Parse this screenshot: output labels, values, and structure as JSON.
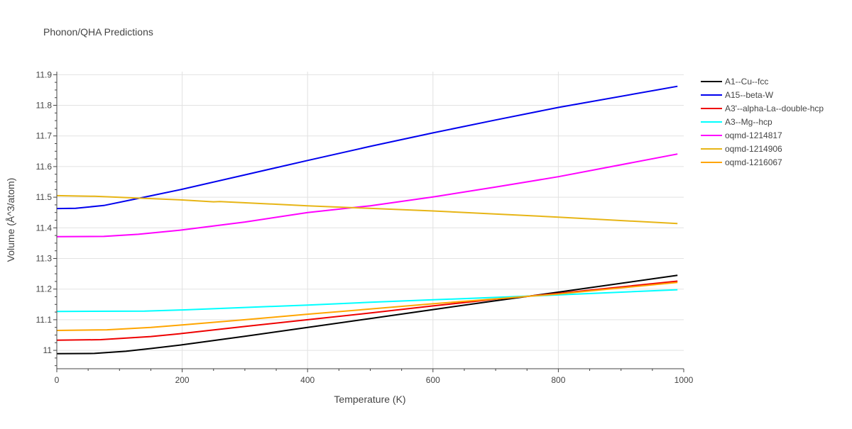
{
  "chart_data": {
    "type": "line",
    "title": "Phonon/QHA Predictions",
    "xlabel": "Temperature (K)",
    "ylabel": "Volume (Å^3/atom)",
    "xlim": [
      0,
      1000
    ],
    "ylim": [
      10.94,
      11.91
    ],
    "x_ticks": [
      0,
      200,
      400,
      600,
      800,
      1000
    ],
    "y_ticks": [
      11,
      11.1,
      11.2,
      11.3,
      11.4,
      11.5,
      11.6,
      11.7,
      11.8,
      11.9
    ],
    "grid": true,
    "legend_position": "right",
    "series": [
      {
        "name": "A1--Cu--fcc",
        "color": "#000000",
        "x": [
          0,
          60,
          110,
          150,
          200,
          300,
          400,
          500,
          600,
          700,
          800,
          990
        ],
        "y": [
          10.989,
          10.99,
          10.997,
          11.006,
          11.018,
          11.046,
          11.075,
          11.104,
          11.133,
          11.162,
          11.19,
          11.245
        ]
      },
      {
        "name": "A15--beta-W",
        "color": "#0000ee",
        "x": [
          0,
          30,
          75,
          120,
          200,
          300,
          400,
          500,
          600,
          700,
          800,
          990
        ],
        "y": [
          11.463,
          11.464,
          11.473,
          11.492,
          11.526,
          11.573,
          11.62,
          11.666,
          11.71,
          11.752,
          11.793,
          11.862
        ]
      },
      {
        "name": "A3'--alpha-La--double-hcp",
        "color": "#ee0000",
        "x": [
          0,
          70,
          150,
          200,
          300,
          400,
          500,
          600,
          700,
          800,
          990
        ],
        "y": [
          11.033,
          11.035,
          11.045,
          11.055,
          11.078,
          11.1,
          11.122,
          11.145,
          11.167,
          11.186,
          11.226
        ]
      },
      {
        "name": "A3--Mg--hcp",
        "color": "#00ffff",
        "x": [
          0,
          140,
          200,
          300,
          400,
          500,
          600,
          700,
          800,
          990
        ],
        "y": [
          11.127,
          11.128,
          11.132,
          11.14,
          11.148,
          11.157,
          11.165,
          11.173,
          11.181,
          11.198
        ]
      },
      {
        "name": "oqmd-1214817",
        "color": "#ff00ff",
        "x": [
          0,
          75,
          130,
          200,
          300,
          400,
          500,
          600,
          700,
          800,
          990
        ],
        "y": [
          11.371,
          11.372,
          11.379,
          11.393,
          11.419,
          11.45,
          11.472,
          11.501,
          11.533,
          11.567,
          11.641
        ]
      },
      {
        "name": "oqmd-1214906",
        "color": "#e7b516",
        "x": [
          0,
          60,
          200,
          250,
          260,
          400,
          600,
          800,
          990
        ],
        "y": [
          11.505,
          11.503,
          11.491,
          11.485,
          11.486,
          11.472,
          11.455,
          11.435,
          11.414
        ]
      },
      {
        "name": "oqmd-1216067",
        "color": "#ffa500",
        "x": [
          0,
          80,
          150,
          200,
          300,
          400,
          500,
          600,
          700,
          800,
          990
        ],
        "y": [
          11.065,
          11.067,
          11.075,
          11.083,
          11.1,
          11.118,
          11.135,
          11.152,
          11.168,
          11.184,
          11.222
        ]
      }
    ]
  }
}
